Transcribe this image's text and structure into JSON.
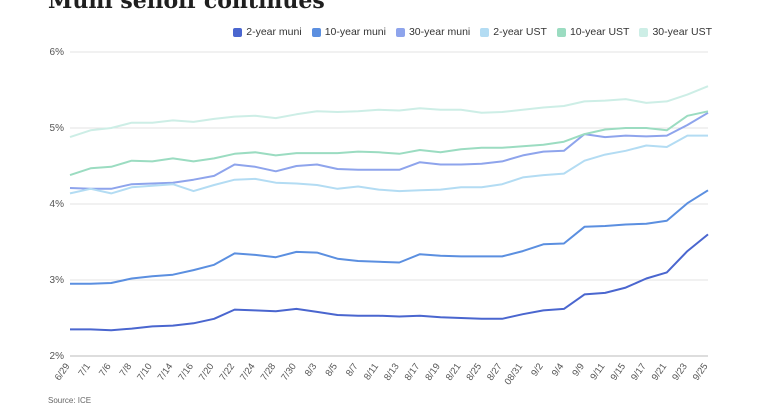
{
  "chart_data": {
    "type": "line",
    "title": "Muni selloff continues",
    "ylim": [
      2,
      6
    ],
    "yticks": [
      "2%",
      "3%",
      "4%",
      "5%",
      "6%"
    ],
    "x": [
      "6/29",
      "7/1",
      "7/6",
      "7/8",
      "7/10",
      "7/14",
      "7/16",
      "7/20",
      "7/22",
      "7/24",
      "7/28",
      "7/30",
      "8/3",
      "8/5",
      "8/7",
      "8/11",
      "8/13",
      "8/17",
      "8/19",
      "8/21",
      "8/25",
      "8/27",
      "08/31",
      "9/2",
      "9/4",
      "9/9",
      "9/11",
      "9/15",
      "9/17",
      "9/21",
      "9/23",
      "9/25"
    ],
    "series": [
      {
        "name": "2-year muni",
        "color": "#4a66cf",
        "values": [
          2.35,
          2.35,
          2.34,
          2.36,
          2.39,
          2.4,
          2.43,
          2.49,
          2.61,
          2.6,
          2.59,
          2.62,
          2.58,
          2.54,
          2.53,
          2.53,
          2.52,
          2.53,
          2.51,
          2.5,
          2.49,
          2.49,
          2.55,
          2.6,
          2.62,
          2.81,
          2.83,
          2.9,
          3.02,
          3.1,
          3.38,
          3.6
        ]
      },
      {
        "name": "10-year muni",
        "color": "#5b8fe0",
        "values": [
          2.95,
          2.95,
          2.96,
          3.02,
          3.05,
          3.07,
          3.13,
          3.2,
          3.35,
          3.33,
          3.3,
          3.37,
          3.36,
          3.28,
          3.25,
          3.24,
          3.23,
          3.34,
          3.32,
          3.31,
          3.31,
          3.31,
          3.38,
          3.47,
          3.48,
          3.7,
          3.71,
          3.73,
          3.74,
          3.78,
          4.01,
          4.18
        ]
      },
      {
        "name": "30-year muni",
        "color": "#8ea4ec",
        "values": [
          4.21,
          4.2,
          4.2,
          4.26,
          4.27,
          4.28,
          4.32,
          4.37,
          4.52,
          4.49,
          4.43,
          4.5,
          4.52,
          4.46,
          4.45,
          4.45,
          4.45,
          4.55,
          4.52,
          4.52,
          4.53,
          4.56,
          4.64,
          4.69,
          4.7,
          4.92,
          4.88,
          4.9,
          4.89,
          4.9,
          5.04,
          5.2
        ]
      },
      {
        "name": "2-year UST",
        "color": "#b3dcf3",
        "values": [
          4.14,
          4.2,
          4.14,
          4.22,
          4.24,
          4.26,
          4.17,
          4.25,
          4.32,
          4.33,
          4.28,
          4.27,
          4.25,
          4.2,
          4.23,
          4.19,
          4.17,
          4.18,
          4.19,
          4.22,
          4.22,
          4.26,
          4.35,
          4.38,
          4.4,
          4.57,
          4.65,
          4.7,
          4.77,
          4.75,
          4.9,
          4.9
        ]
      },
      {
        "name": "10-year UST",
        "color": "#9bdcc1",
        "values": [
          4.38,
          4.47,
          4.49,
          4.57,
          4.56,
          4.6,
          4.56,
          4.6,
          4.66,
          4.68,
          4.64,
          4.67,
          4.67,
          4.67,
          4.69,
          4.68,
          4.66,
          4.71,
          4.68,
          4.72,
          4.74,
          4.74,
          4.76,
          4.78,
          4.82,
          4.92,
          4.98,
          5.0,
          5.0,
          4.97,
          5.16,
          5.22
        ]
      },
      {
        "name": "30-year UST",
        "color": "#cdeee6",
        "values": [
          4.88,
          4.97,
          5.0,
          5.07,
          5.07,
          5.1,
          5.08,
          5.12,
          5.15,
          5.16,
          5.13,
          5.18,
          5.22,
          5.21,
          5.22,
          5.24,
          5.23,
          5.26,
          5.24,
          5.24,
          5.2,
          5.21,
          5.24,
          5.27,
          5.29,
          5.35,
          5.36,
          5.38,
          5.33,
          5.35,
          5.44,
          5.55
        ]
      }
    ]
  },
  "source": "Source: ICE"
}
